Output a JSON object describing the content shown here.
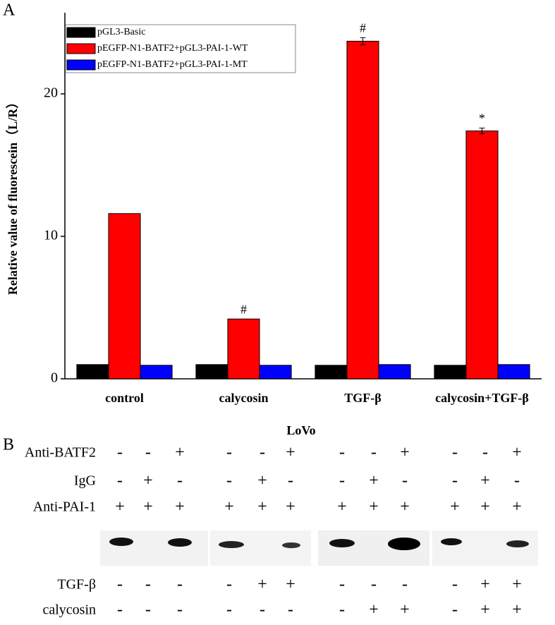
{
  "panel_a_label": "A",
  "chart_data": {
    "type": "bar",
    "y_label": "Relative value of fluorescein（L/R）",
    "x_label": "LoVo",
    "categories": [
      "control",
      "calycosin",
      "TGF-β",
      "calycosin+TGF-β"
    ],
    "series": [
      {
        "name": "pGL3-Basic",
        "color": "#000000",
        "values": [
          1.0,
          1.0,
          0.95,
          0.95
        ]
      },
      {
        "name": "pEGFP-N1-BATF2+pGL3-PAI-1-WT",
        "color": "#ff0000",
        "values": [
          11.6,
          4.2,
          23.7,
          17.4
        ],
        "errors": [
          null,
          null,
          0.25,
          0.2
        ],
        "annotations": [
          null,
          "#",
          "#",
          "*"
        ]
      },
      {
        "name": "pEGFP-N1-BATF2+pGL3-PAI-1-MT",
        "color": "#0000ff",
        "values": [
          0.95,
          0.95,
          1.0,
          1.0
        ]
      }
    ],
    "ylim": [
      0,
      25.7
    ],
    "yticks": [
      0,
      10,
      20
    ],
    "legend": "top-left"
  },
  "panel_b": {
    "label": "B",
    "rows": [
      {
        "label": "Anti-BATF2",
        "symbols": [
          "-",
          "-",
          "+",
          "-",
          "-",
          "+",
          "-",
          "-",
          "+",
          "-",
          "-",
          "+"
        ]
      },
      {
        "label": "IgG",
        "symbols": [
          "-",
          "+",
          "-",
          "-",
          "+",
          "-",
          "-",
          "+",
          "-",
          "-",
          "+",
          "-"
        ]
      },
      {
        "label": "Anti-PAI-1",
        "symbols": [
          "+",
          "+",
          "+",
          "+",
          "+",
          "+",
          "+",
          "+",
          "+",
          "+",
          "+",
          "+"
        ]
      },
      {
        "label": "TGF-β",
        "symbols": [
          "-",
          "-",
          "-",
          "-",
          "+",
          "+",
          "-",
          "-",
          "-",
          "-",
          "+",
          "+"
        ]
      },
      {
        "label": "calycosin",
        "symbols": [
          "-",
          "-",
          "-",
          "-",
          "-",
          "-",
          "-",
          "+",
          "+",
          "-",
          "+",
          "+"
        ]
      }
    ]
  }
}
